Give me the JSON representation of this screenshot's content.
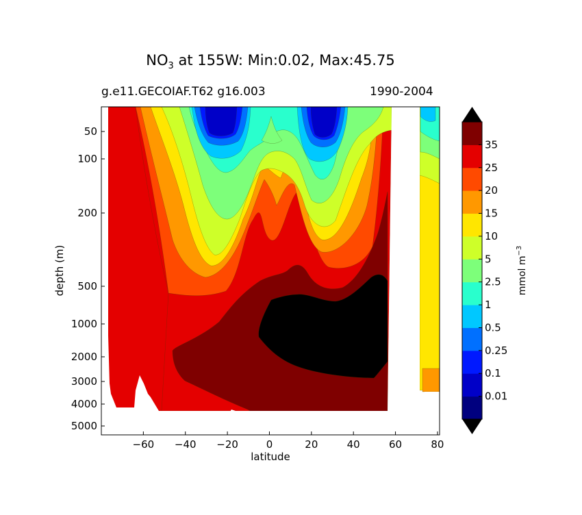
{
  "chart_data": {
    "type": "heatmap",
    "subtype": "filled-contour depth section",
    "title_main": "NO",
    "title_sub": "3",
    "title_rest": " at 155W: Min:0.02, Max:45.75",
    "subtitle_left": "g.e11.GECOIAF.T62 g16.003",
    "subtitle_right": "1990-2004",
    "xlabel": "latitude",
    "ylabel": "depth (m)",
    "xlim": [
      -80,
      81
    ],
    "x_ticks": [
      -60,
      -40,
      -20,
      0,
      20,
      40,
      60,
      80
    ],
    "x_tick_labels": [
      "−60",
      "−40",
      "−20",
      "0",
      "20",
      "40",
      "60",
      "80"
    ],
    "y_ticks": [
      "50",
      "100",
      "200",
      "500",
      "1000",
      "2000",
      "3000",
      "4000",
      "5000"
    ],
    "colorbar": {
      "label": "mmol m",
      "label_sup": "−3",
      "levels": [
        0.01,
        0.1,
        0.25,
        0.5,
        1,
        2.5,
        5,
        10,
        15,
        20,
        25,
        35
      ],
      "level_labels": [
        "0.01",
        "0.1",
        "0.25",
        "0.5",
        "1",
        "2.5",
        "5",
        "10",
        "15",
        "20",
        "25",
        "35"
      ],
      "colors": [
        "#00007f",
        "#0000c8",
        "#0019ff",
        "#0070ff",
        "#00c8ff",
        "#29ffcd",
        "#7dff7a",
        "#ceff29",
        "#ffe600",
        "#ff9800",
        "#ff4a00",
        "#e40000",
        "#7f0000"
      ],
      "over_color": "#000000",
      "under_color": "#000000"
    },
    "colors": {
      "black": "#000000",
      "maroon": "#7f0000",
      "red": "#e40000",
      "red_orange": "#ff4a00",
      "orange": "#ff9800",
      "yellow": "#ffe600",
      "yellow_green": "#ceff29",
      "light_green": "#7dff7a",
      "aqua": "#29ffcd",
      "cyan": "#00c8ff",
      "blue": "#0070ff",
      "deep_blue": "#0019ff",
      "navy": "#0000c8"
    }
  }
}
